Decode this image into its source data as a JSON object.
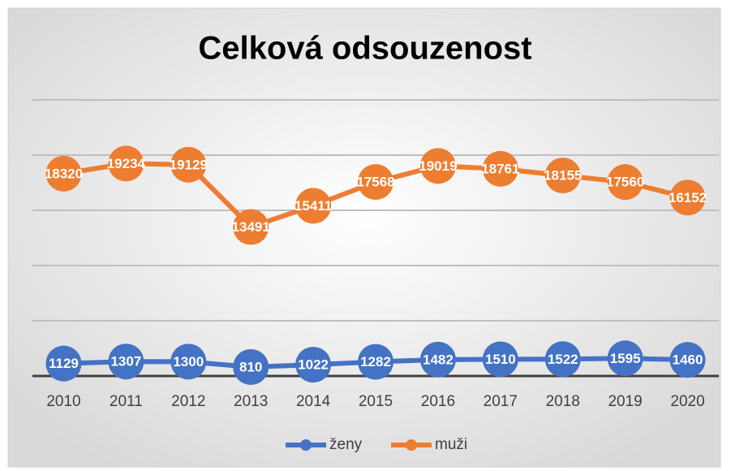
{
  "chart_data": {
    "type": "line",
    "title": "Celková odsouzenost",
    "categories": [
      "2010",
      "2011",
      "2012",
      "2013",
      "2014",
      "2015",
      "2016",
      "2017",
      "2018",
      "2019",
      "2020"
    ],
    "series": [
      {
        "name": "ženy",
        "color": "#4472c4",
        "values": [
          1129,
          1307,
          1300,
          810,
          1022,
          1282,
          1482,
          1510,
          1522,
          1595,
          1460
        ]
      },
      {
        "name": "muži",
        "color": "#ed7d31",
        "values": [
          18320,
          19234,
          19129,
          13491,
          15411,
          17568,
          19019,
          18761,
          18155,
          17560,
          16152
        ]
      }
    ],
    "ylim": [
      0,
      25000
    ],
    "yticks": [
      0,
      5000,
      10000,
      15000,
      20000,
      25000
    ],
    "grid": true,
    "legend": "bottom"
  }
}
